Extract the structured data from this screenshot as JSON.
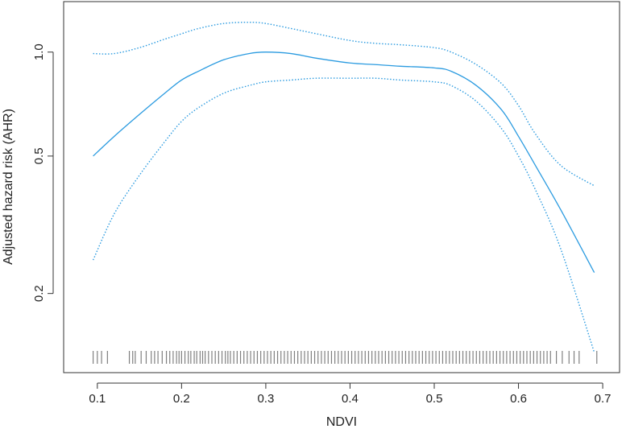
{
  "chart_data": {
    "type": "line",
    "title": "",
    "xlabel": "NDVI",
    "ylabel": "Adjusted hazard risk (AHR)",
    "xlim": [
      0.06,
      0.72
    ],
    "ylim": [
      0.118,
      1.4
    ],
    "y_scale": "log",
    "x_ticks": [
      0.1,
      0.2,
      0.3,
      0.4,
      0.5,
      0.6,
      0.7
    ],
    "x_tick_labels": [
      "0.1",
      "0.2",
      "0.3",
      "0.4",
      "0.5",
      "0.6",
      "0.7"
    ],
    "y_ticks": [
      0.2,
      0.5,
      1.0
    ],
    "y_tick_labels": [
      "0.2",
      "0.5",
      "1.0"
    ],
    "grid": false,
    "series": [
      {
        "role": "estimate",
        "style": "solid",
        "x": [
          0.095,
          0.12,
          0.15,
          0.18,
          0.2,
          0.22,
          0.25,
          0.28,
          0.3,
          0.33,
          0.36,
          0.4,
          0.43,
          0.46,
          0.5,
          0.52,
          0.55,
          0.58,
          0.6,
          0.62,
          0.65,
          0.69
        ],
        "y": [
          0.5,
          0.57,
          0.66,
          0.76,
          0.83,
          0.88,
          0.95,
          0.99,
          1.0,
          0.99,
          0.96,
          0.93,
          0.92,
          0.91,
          0.9,
          0.88,
          0.8,
          0.68,
          0.57,
          0.47,
          0.35,
          0.23
        ]
      },
      {
        "role": "upper-confidence-bound",
        "style": "dotted",
        "x": [
          0.095,
          0.12,
          0.15,
          0.18,
          0.2,
          0.22,
          0.25,
          0.28,
          0.3,
          0.33,
          0.36,
          0.4,
          0.43,
          0.46,
          0.5,
          0.52,
          0.55,
          0.58,
          0.6,
          0.62,
          0.65,
          0.69
        ],
        "y": [
          0.99,
          0.99,
          1.03,
          1.09,
          1.13,
          1.17,
          1.21,
          1.22,
          1.21,
          1.17,
          1.13,
          1.08,
          1.06,
          1.05,
          1.03,
          1.0,
          0.92,
          0.81,
          0.7,
          0.58,
          0.47,
          0.41
        ]
      },
      {
        "role": "lower-confidence-bound",
        "style": "dotted",
        "x": [
          0.095,
          0.12,
          0.15,
          0.18,
          0.2,
          0.22,
          0.25,
          0.28,
          0.3,
          0.33,
          0.36,
          0.4,
          0.43,
          0.46,
          0.5,
          0.52,
          0.55,
          0.58,
          0.6,
          0.62,
          0.65,
          0.69
        ],
        "y": [
          0.25,
          0.34,
          0.44,
          0.55,
          0.63,
          0.69,
          0.76,
          0.8,
          0.82,
          0.83,
          0.84,
          0.84,
          0.84,
          0.83,
          0.82,
          0.8,
          0.72,
          0.6,
          0.5,
          0.4,
          0.27,
          0.135
        ]
      }
    ],
    "rug_ticks": [
      0.095,
      0.1,
      0.105,
      0.112,
      0.138,
      0.142,
      0.145,
      0.152,
      0.158,
      0.164,
      0.168,
      0.172,
      0.177,
      0.182,
      0.186,
      0.19,
      0.194,
      0.197,
      0.2,
      0.204,
      0.208,
      0.211,
      0.215,
      0.218,
      0.222,
      0.225,
      0.228,
      0.232,
      0.236,
      0.24,
      0.244,
      0.248,
      0.252,
      0.255,
      0.258,
      0.262,
      0.266,
      0.27,
      0.274,
      0.278,
      0.282,
      0.286,
      0.29,
      0.294,
      0.298,
      0.302,
      0.306,
      0.31,
      0.314,
      0.318,
      0.322,
      0.326,
      0.33,
      0.334,
      0.338,
      0.342,
      0.346,
      0.35,
      0.354,
      0.358,
      0.362,
      0.366,
      0.37,
      0.374,
      0.378,
      0.382,
      0.386,
      0.39,
      0.394,
      0.398,
      0.402,
      0.406,
      0.41,
      0.414,
      0.418,
      0.422,
      0.426,
      0.43,
      0.434,
      0.438,
      0.442,
      0.446,
      0.45,
      0.454,
      0.458,
      0.462,
      0.466,
      0.47,
      0.474,
      0.478,
      0.482,
      0.486,
      0.49,
      0.494,
      0.498,
      0.502,
      0.506,
      0.51,
      0.514,
      0.518,
      0.522,
      0.526,
      0.53,
      0.534,
      0.538,
      0.542,
      0.546,
      0.55,
      0.554,
      0.558,
      0.562,
      0.566,
      0.57,
      0.574,
      0.578,
      0.582,
      0.586,
      0.59,
      0.594,
      0.598,
      0.602,
      0.606,
      0.61,
      0.614,
      0.618,
      0.622,
      0.626,
      0.63,
      0.634,
      0.638,
      0.645,
      0.652,
      0.66,
      0.666,
      0.672,
      0.693
    ],
    "colors": {
      "curve": "#2b9be0",
      "rug": "#808080",
      "axis": "#333333"
    }
  }
}
